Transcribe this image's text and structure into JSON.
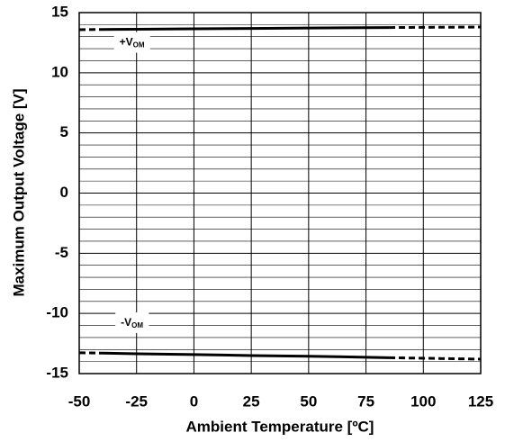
{
  "chart_data": {
    "type": "line",
    "xlabel": "Ambient Temperature [ºC]",
    "ylabel": "Maximum Output Voltage [V]",
    "xlim": [
      -50,
      125
    ],
    "xticks": [
      -50,
      -25,
      0,
      25,
      50,
      75,
      100,
      125
    ],
    "ylim": [
      -15,
      15
    ],
    "yticks": [
      -15,
      -10,
      -5,
      0,
      5,
      10,
      15
    ],
    "yminorticks": [
      -14,
      -13,
      -12,
      -11,
      -9,
      -8,
      -7,
      -6,
      -4,
      -3,
      -2,
      -1,
      1,
      2,
      3,
      4,
      6,
      7,
      8,
      9,
      11,
      12,
      13,
      14
    ],
    "grid": true,
    "series": [
      {
        "color": "#000000",
        "style": "solid",
        "x": [
          -40,
          -25,
          0,
          25,
          50,
          75,
          85
        ],
        "values": [
          13.6,
          13.62,
          13.65,
          13.68,
          13.72,
          13.75,
          13.76
        ]
      },
      {
        "color": "#000000",
        "style": "dashed",
        "x": [
          -50,
          -40
        ],
        "values": [
          13.58,
          13.6
        ]
      },
      {
        "color": "#000000",
        "style": "dashed",
        "x": [
          85,
          125
        ],
        "values": [
          13.76,
          13.8
        ]
      },
      {
        "color": "#000000",
        "style": "solid",
        "x": [
          -40,
          -25,
          0,
          25,
          50,
          75,
          85
        ],
        "values": [
          -13.3,
          -13.35,
          -13.42,
          -13.5,
          -13.56,
          -13.64,
          -13.68
        ]
      },
      {
        "color": "#000000",
        "style": "dashed",
        "x": [
          -50,
          -40
        ],
        "values": [
          -13.27,
          -13.3
        ]
      },
      {
        "color": "#000000",
        "style": "dashed",
        "x": [
          85,
          125
        ],
        "values": [
          -13.68,
          -13.8
        ]
      }
    ],
    "annotations": [
      {
        "text": "+V",
        "sub": "OM",
        "x": -27,
        "y": 12.5
      },
      {
        "text": "-V",
        "sub": "OM",
        "x": -27,
        "y": -10.8
      }
    ]
  }
}
